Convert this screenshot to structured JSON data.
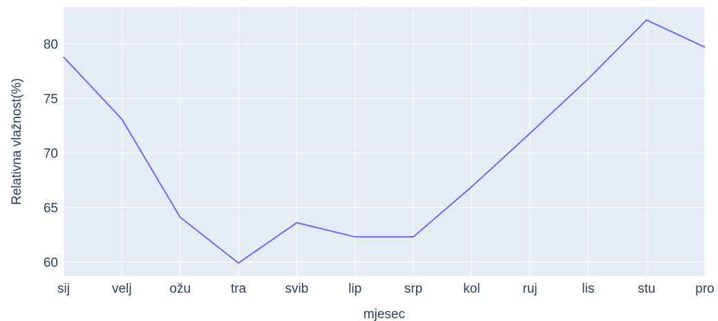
{
  "chart_data": {
    "type": "line",
    "x_label": "mjesec",
    "y_label": "Relativna vlažnost(%)",
    "categories": [
      "sij",
      "velj",
      "ožu",
      "tra",
      "svib",
      "lip",
      "srp",
      "kol",
      "ruj",
      "lis",
      "stu",
      "pro"
    ],
    "series": [
      {
        "color": "#636efa",
        "values": [
          78.8,
          73.1,
          64.1,
          59.9,
          63.6,
          62.3,
          62.3,
          66.9,
          71.8,
          76.8,
          82.2,
          79.7
        ]
      }
    ],
    "ylim": [
      58.7,
      83.4
    ],
    "yticks": [
      60,
      65,
      70,
      75,
      80
    ],
    "grid": true
  }
}
